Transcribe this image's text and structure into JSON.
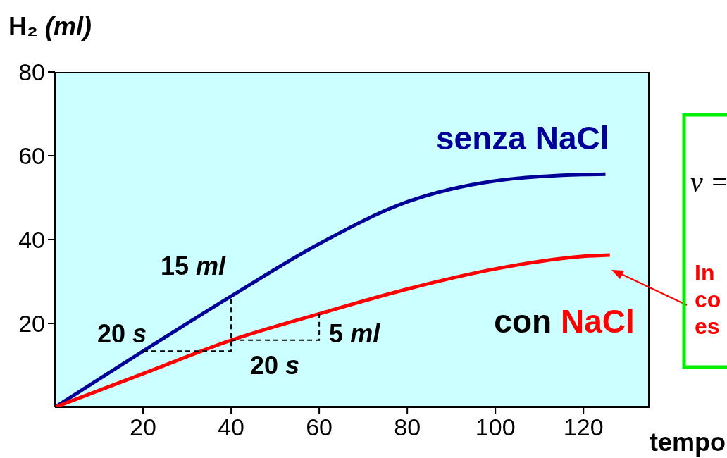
{
  "chart_data": {
    "type": "line",
    "xlabel": "tempo",
    "ylabel": "H₂ (ml)",
    "xlim": [
      0,
      135
    ],
    "xticks": [
      20,
      40,
      60,
      80,
      100,
      120
    ],
    "ylim": [
      0,
      80
    ],
    "yticks": [
      20,
      40,
      60,
      80
    ],
    "marker": "none",
    "line_style": "solid",
    "series": [
      {
        "name": "senza NaCl",
        "color": "#000099",
        "x": [
          0,
          20,
          40,
          60,
          80,
          100,
          120,
          125
        ],
        "values": [
          0,
          13.4,
          26.5,
          39,
          49,
          54,
          55.5,
          55.6
        ]
      },
      {
        "name": "con NaCl",
        "color": "#ff0000",
        "x": [
          0,
          20,
          40,
          60,
          80,
          100,
          120,
          126
        ],
        "values": [
          0,
          8,
          16,
          22.3,
          28.2,
          33,
          36,
          36.3
        ]
      }
    ],
    "annotations": [
      {
        "text": "15 ml",
        "x": 40,
        "y": 26.5
      },
      {
        "text": "20 s",
        "x": 20,
        "y": 13.4
      },
      {
        "text": "5 ml",
        "x": 60,
        "y": 22.3
      },
      {
        "text": "20 s",
        "x": 40,
        "y": 16
      },
      "v =",
      "In\nco\nes"
    ]
  }
}
